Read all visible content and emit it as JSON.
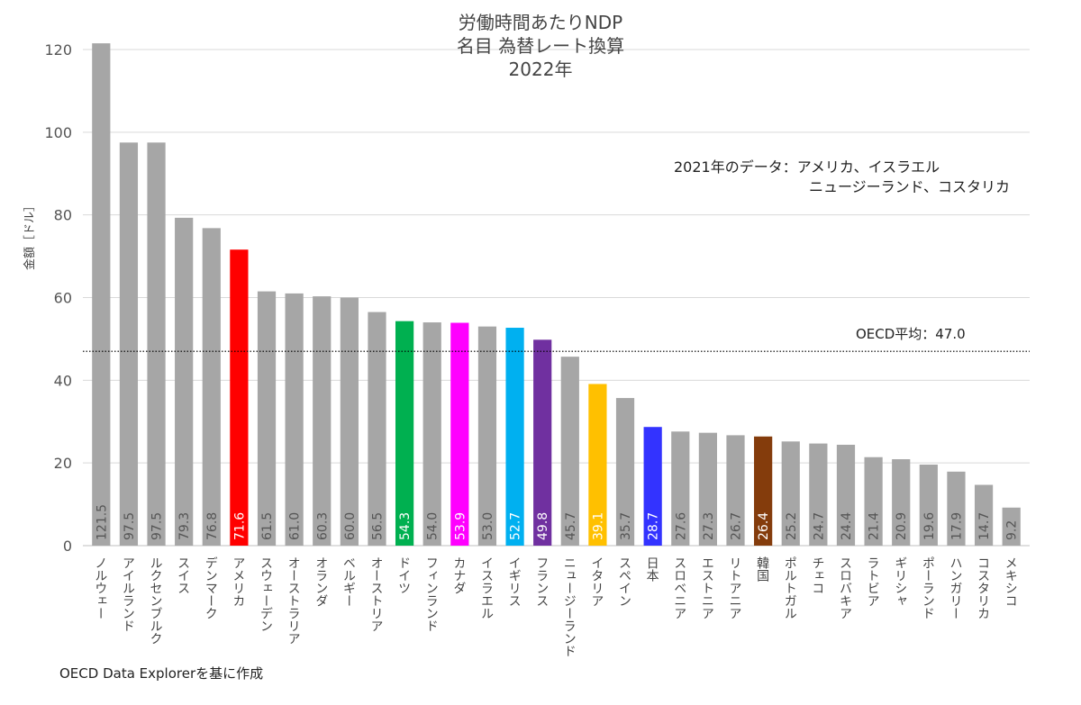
{
  "chart_data": {
    "type": "bar",
    "title_lines": [
      "労働時間あたりNDP",
      "名目 為替レート換算",
      "2022年"
    ],
    "ylabel": "金額［ドル］",
    "ylim": [
      0,
      120
    ],
    "yticks": [
      0,
      20,
      40,
      60,
      80,
      100,
      120
    ],
    "grid": true,
    "categories": [
      "ノルウェー",
      "アイルランド",
      "ルクセンブルク",
      "スイス",
      "デンマーク",
      "アメリカ",
      "スウェーデン",
      "オーストラリア",
      "オランダ",
      "ベルギー",
      "オーストリア",
      "ドイツ",
      "フィンランド",
      "カナダ",
      "イスラエル",
      "イギリス",
      "フランス",
      "ニュージーランド",
      "イタリア",
      "スペイン",
      "日本",
      "スロベニア",
      "エストニア",
      "リトアニア",
      "韓国",
      "ポルトガル",
      "チェコ",
      "スロバキア",
      "ラトビア",
      "ギリシャ",
      "ポーランド",
      "ハンガリー",
      "コスタリカ",
      "メキシコ"
    ],
    "values": [
      121.5,
      97.5,
      97.5,
      79.3,
      76.8,
      71.6,
      61.5,
      61.0,
      60.3,
      60.0,
      56.5,
      54.3,
      54.0,
      53.9,
      53.0,
      52.7,
      49.8,
      45.7,
      39.1,
      35.7,
      28.7,
      27.6,
      27.3,
      26.7,
      26.4,
      25.2,
      24.7,
      24.4,
      21.4,
      20.9,
      19.6,
      17.9,
      14.7,
      9.2
    ],
    "value_labels": [
      "121.5",
      "97.5",
      "97.5",
      "79.3",
      "76.8",
      "71.6",
      "61.5",
      "61.0",
      "60.3",
      "60.0",
      "56.5",
      "54.3",
      "54.0",
      "53.9",
      "53.0",
      "52.7",
      "49.8",
      "45.7",
      "39.1",
      "35.7",
      "28.7",
      "27.6",
      "27.3",
      "26.7",
      "26.4",
      "25.2",
      "24.7",
      "24.4",
      "21.4",
      "20.9",
      "19.6",
      "17.9",
      "14.7",
      "9.2"
    ],
    "colors": [
      "#a6a6a6",
      "#a6a6a6",
      "#a6a6a6",
      "#a6a6a6",
      "#a6a6a6",
      "#ff0000",
      "#a6a6a6",
      "#a6a6a6",
      "#a6a6a6",
      "#a6a6a6",
      "#a6a6a6",
      "#00b050",
      "#a6a6a6",
      "#ff00ff",
      "#a6a6a6",
      "#00b0f0",
      "#7030a0",
      "#a6a6a6",
      "#ffc000",
      "#a6a6a6",
      "#3333ff",
      "#a6a6a6",
      "#a6a6a6",
      "#a6a6a6",
      "#843c0c",
      "#a6a6a6",
      "#a6a6a6",
      "#a6a6a6",
      "#a6a6a6",
      "#a6a6a6",
      "#a6a6a6",
      "#a6a6a6",
      "#a6a6a6",
      "#a6a6a6"
    ],
    "label_colors": [
      "#555",
      "#555",
      "#555",
      "#555",
      "#555",
      "#ffffff",
      "#555",
      "#555",
      "#555",
      "#555",
      "#555",
      "#ffffff",
      "#555",
      "#ffffff",
      "#555",
      "#ffffff",
      "#ffffff",
      "#555",
      "#ffffff",
      "#555",
      "#ffffff",
      "#555",
      "#555",
      "#555",
      "#ffffff",
      "#555",
      "#555",
      "#555",
      "#555",
      "#555",
      "#555",
      "#555",
      "#555",
      "#555"
    ],
    "reference_line": {
      "value": 47.0,
      "label": "OECD平均：47.0",
      "style": "dotted"
    },
    "annotation": {
      "line1": "2021年のデータ：アメリカ、イスラエル",
      "line2": "ニュージーランド、コスタリカ"
    }
  },
  "source": "OECD Data Explorerを基に作成"
}
